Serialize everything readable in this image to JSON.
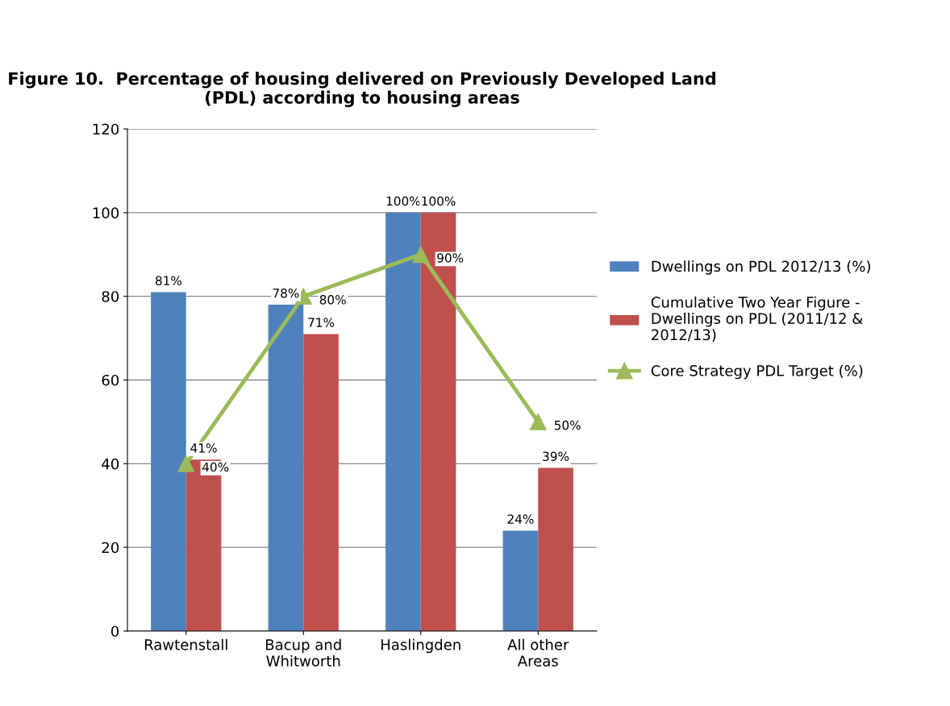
{
  "chart_data": {
    "type": "bar",
    "title": "Figure 10.  Percentage of housing delivered on Previously Developed Land (PDL) according to housing areas",
    "categories": [
      "Rawtenstall",
      "Bacup and Whitworth",
      "Haslingden",
      "All other Areas"
    ],
    "series": [
      {
        "name": "Dwellings on PDL 2012/13 (%)",
        "color": "#4f81bd",
        "values": [
          81,
          78,
          100,
          24
        ],
        "value_labels": [
          "81%",
          "78%",
          "100%",
          "24%"
        ]
      },
      {
        "name": "Cumulative Two Year Figure - Dwellings on PDL (2011/12 & 2012/13)",
        "color": "#c0504d",
        "values": [
          41,
          71,
          100,
          39
        ],
        "value_labels": [
          "41%",
          "71%",
          "100%",
          "39%"
        ]
      },
      {
        "name": "Core Strategy PDL Target (%)",
        "type": "line",
        "color": "#9bbb59",
        "marker": "triangle",
        "values": [
          40,
          80,
          90,
          50
        ],
        "value_labels": [
          "40%",
          "80%",
          "90%",
          "50%"
        ]
      }
    ],
    "ylim": [
      0,
      120
    ],
    "yticks": [
      0,
      20,
      40,
      60,
      80,
      100,
      120
    ],
    "grid": "y",
    "legend": "right"
  }
}
